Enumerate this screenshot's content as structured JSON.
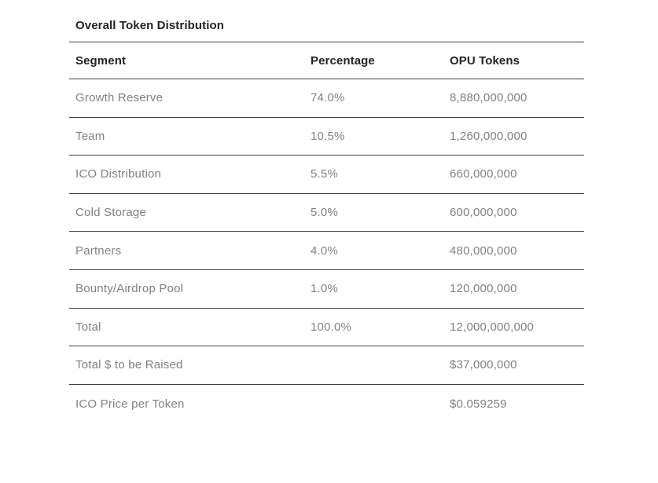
{
  "table": {
    "title": "Overall Token Distribution",
    "columns": [
      "Segment",
      "Percentage",
      "OPU Tokens"
    ],
    "rows": [
      {
        "segment": "Growth Reserve",
        "percentage": "74.0%",
        "tokens": "8,880,000,000"
      },
      {
        "segment": "Team",
        "percentage": "10.5%",
        "tokens": "1,260,000,000"
      },
      {
        "segment": "ICO Distribution",
        "percentage": "5.5%",
        "tokens": "660,000,000"
      },
      {
        "segment": "Cold Storage",
        "percentage": "5.0%",
        "tokens": "600,000,000"
      },
      {
        "segment": "Partners",
        "percentage": "4.0%",
        "tokens": "480,000,000"
      },
      {
        "segment": "Bounty/Airdrop Pool",
        "percentage": "1.0%",
        "tokens": "120,000,000"
      },
      {
        "segment": "Total",
        "percentage": "100.0%",
        "tokens": "12,000,000,000"
      },
      {
        "segment": "Total $ to be Raised",
        "percentage": "",
        "tokens": "$37,000,000"
      },
      {
        "segment": "ICO Price per Token",
        "percentage": "",
        "tokens": "$0.059259"
      }
    ],
    "colors": {
      "header_text": "#212327",
      "row_text": "#7e8285",
      "line": "#3c3f41",
      "background": "#ffffff"
    }
  }
}
